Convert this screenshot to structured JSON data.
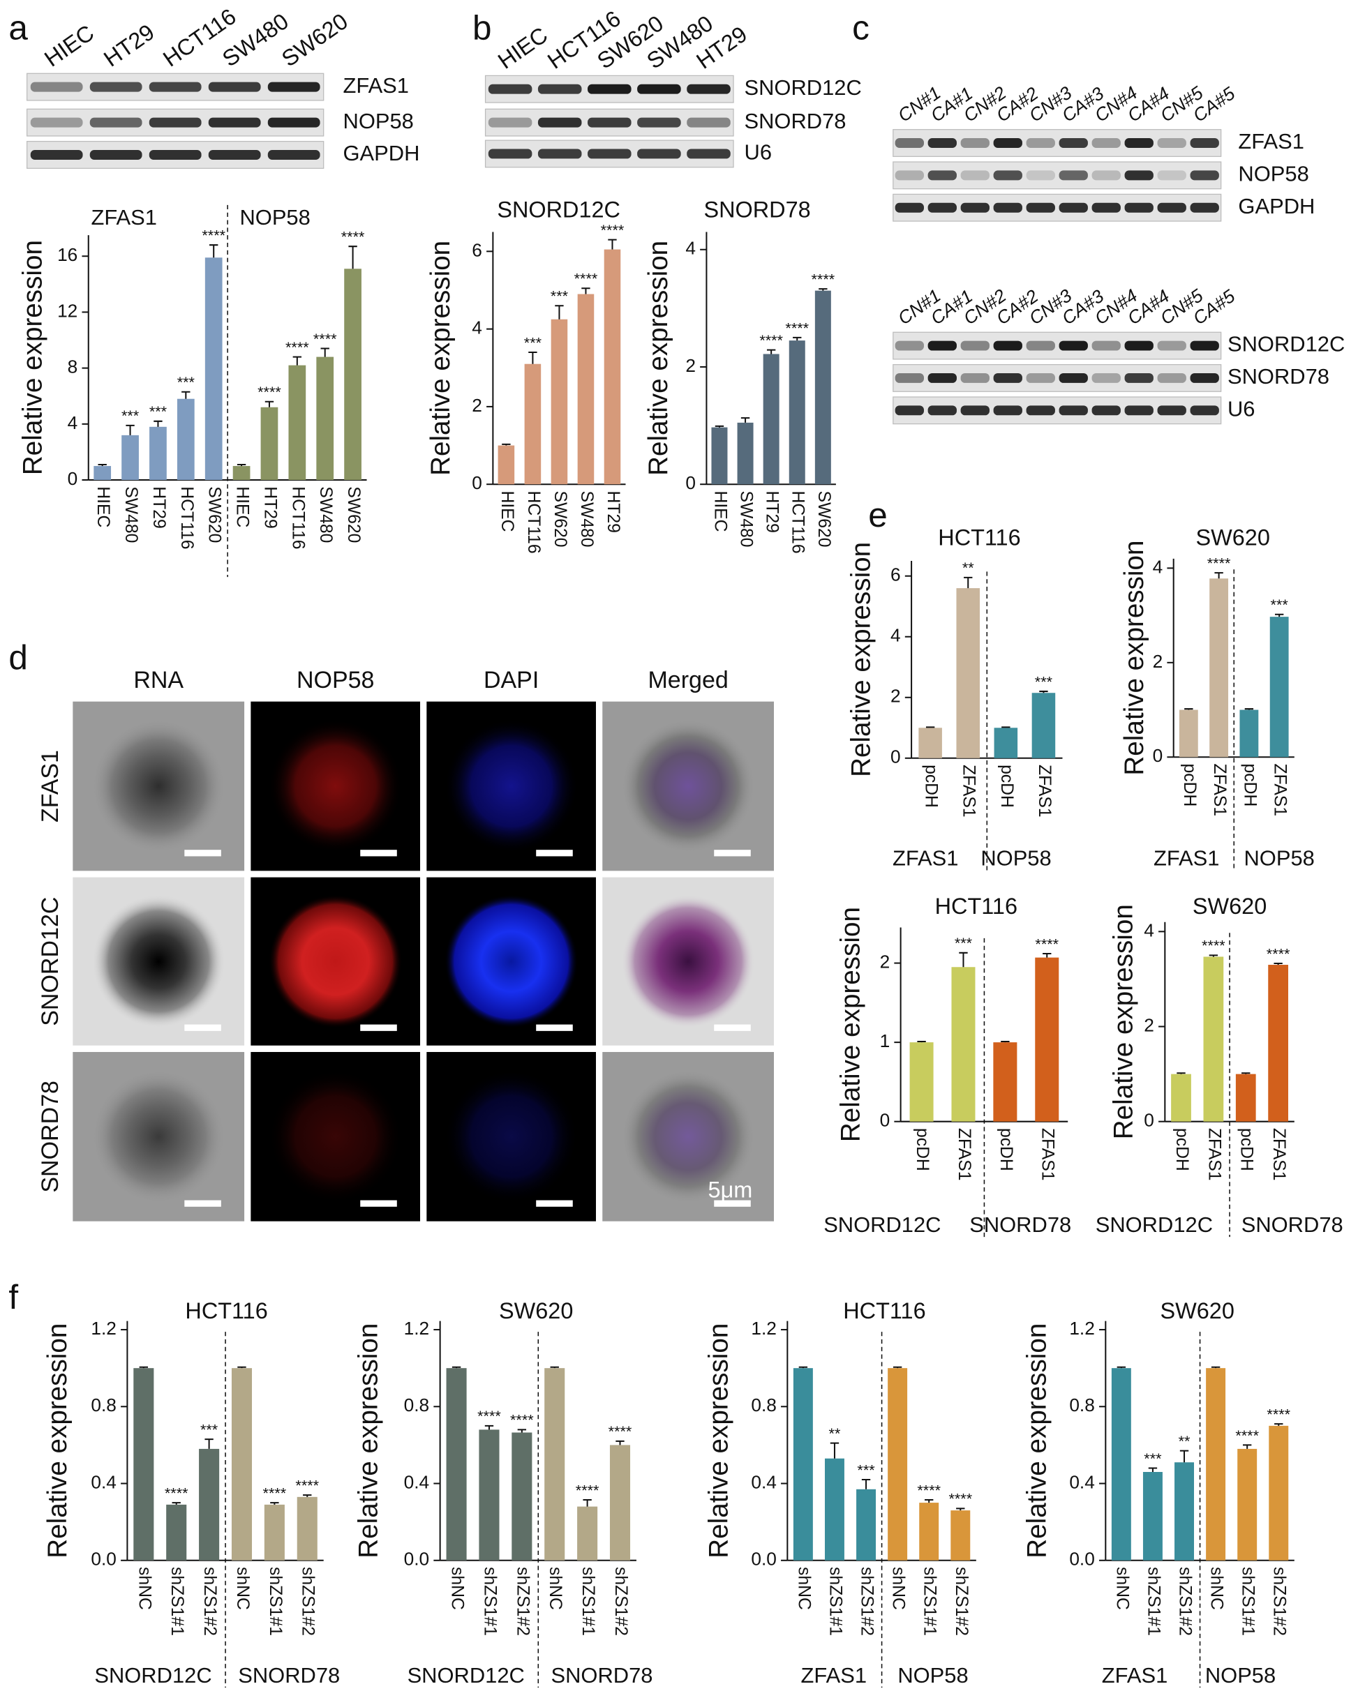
{
  "figure": {
    "panel_labels": [
      "a",
      "b",
      "c",
      "d",
      "e",
      "f"
    ],
    "blot_a": {
      "lanes": [
        "HIEC",
        "HT29",
        "HCT116",
        "SW480",
        "SW620"
      ],
      "rows": [
        "ZFAS1",
        "NOP58",
        "GAPDH"
      ]
    },
    "blot_b": {
      "lanes": [
        "HIEC",
        "HCT116",
        "SW620",
        "SW480",
        "HT29"
      ],
      "rows": [
        "SNORD12C",
        "SNORD78",
        "U6"
      ]
    },
    "blot_c1": {
      "lanes": [
        "CN#1",
        "CA#1",
        "CN#2",
        "CA#2",
        "CN#3",
        "CA#3",
        "CN#4",
        "CA#4",
        "CN#5",
        "CA#5"
      ],
      "rows": [
        "ZFAS1",
        "NOP58",
        "GAPDH"
      ]
    },
    "blot_c2": {
      "lanes": [
        "CN#1",
        "CA#1",
        "CN#2",
        "CA#2",
        "CN#3",
        "CA#3",
        "CN#4",
        "CA#4",
        "CN#5",
        "CA#5"
      ],
      "rows": [
        "SNORD12C",
        "SNORD78",
        "U6"
      ]
    },
    "microscopy": {
      "columns": [
        "RNA",
        "NOP58",
        "DAPI",
        "Merged"
      ],
      "rows": [
        "ZFAS1",
        "SNORD12C",
        "SNORD78"
      ],
      "scale_bar": "5μm"
    }
  },
  "chart_data": [
    {
      "type": "bar",
      "ylabel": "Relative expression",
      "ylim": [
        0,
        17.5
      ],
      "yticks": [
        0,
        4,
        8,
        12,
        16
      ],
      "groups": [
        {
          "name": "ZFAS1",
          "color": "#7f9cc0",
          "categories": [
            "HIEC",
            "SW480",
            "HT29",
            "HCT116",
            "SW620"
          ],
          "values": [
            1,
            3.2,
            3.8,
            5.8,
            15.9
          ],
          "errors": [
            0.1,
            0.7,
            0.4,
            0.5,
            0.9
          ],
          "significance": [
            null,
            "***",
            "***",
            "***",
            "****"
          ]
        },
        {
          "name": "NOP58",
          "color": "#8a9462",
          "categories": [
            "HIEC",
            "HT29",
            "HCT116",
            "SW480",
            "SW620"
          ],
          "values": [
            1,
            5.2,
            8.2,
            8.8,
            15.1
          ],
          "errors": [
            0.1,
            0.4,
            0.6,
            0.6,
            1.6
          ],
          "significance": [
            null,
            "****",
            "****",
            "****",
            "****"
          ]
        }
      ]
    },
    {
      "type": "bar",
      "title": "SNORD12C",
      "ylabel": "Relative expression",
      "ylim": [
        0,
        6.5
      ],
      "yticks": [
        0,
        2,
        4,
        6
      ],
      "groups": [
        {
          "color": "#d69a7a",
          "categories": [
            "HIEC",
            "HCT116",
            "SW620",
            "SW480",
            "HT29"
          ],
          "values": [
            1,
            3.1,
            4.25,
            4.9,
            6.05
          ],
          "errors": [
            0.03,
            0.3,
            0.35,
            0.15,
            0.25
          ],
          "significance": [
            null,
            "***",
            "***",
            "****",
            "****"
          ]
        }
      ]
    },
    {
      "type": "bar",
      "title": "SNORD78",
      "ylabel": "Relative expression",
      "ylim": [
        0,
        4.3
      ],
      "yticks": [
        0,
        2,
        4
      ],
      "groups": [
        {
          "color": "#566b7c",
          "categories": [
            "HIEC",
            "SW480",
            "HT29",
            "HCT116",
            "SW620"
          ],
          "values": [
            0.97,
            1.05,
            2.22,
            2.45,
            3.3
          ],
          "errors": [
            0.02,
            0.08,
            0.07,
            0.05,
            0.03
          ],
          "significance": [
            null,
            null,
            "****",
            "****",
            "****"
          ]
        }
      ]
    },
    {
      "type": "bar",
      "title": "HCT116",
      "ylabel": "Relative expression",
      "ylim": [
        0,
        6.5
      ],
      "yticks": [
        0,
        2,
        4,
        6
      ],
      "groups": [
        {
          "name": "ZFAS1",
          "color": "#c9b59c",
          "categories": [
            "pcDH",
            "ZFAS1"
          ],
          "values": [
            1,
            5.6
          ],
          "errors": [
            0.02,
            0.35
          ],
          "significance": [
            null,
            "**"
          ]
        },
        {
          "name": "NOP58",
          "color": "#3e8e9c",
          "categories": [
            "pcDH",
            "ZFAS1"
          ],
          "values": [
            1,
            2.15
          ],
          "errors": [
            0.02,
            0.05
          ],
          "significance": [
            null,
            "***"
          ]
        }
      ]
    },
    {
      "type": "bar",
      "title": "SW620",
      "ylabel": "Relative expression",
      "ylim": [
        0,
        4.2
      ],
      "yticks": [
        0,
        2,
        4
      ],
      "groups": [
        {
          "name": "ZFAS1",
          "color": "#c9b59c",
          "categories": [
            "pcDH",
            "ZFAS1"
          ],
          "values": [
            1,
            3.78
          ],
          "errors": [
            0.02,
            0.12
          ],
          "significance": [
            null,
            "****"
          ]
        },
        {
          "name": "NOP58",
          "color": "#3e8e9c",
          "categories": [
            "pcDH",
            "ZFAS1"
          ],
          "values": [
            1,
            2.97
          ],
          "errors": [
            0.02,
            0.05
          ],
          "significance": [
            null,
            "***"
          ]
        }
      ]
    },
    {
      "type": "bar",
      "title": "HCT116",
      "ylabel": "Relative expression",
      "ylim": [
        0,
        2.45
      ],
      "yticks": [
        0,
        1,
        2
      ],
      "groups": [
        {
          "name": "SNORD12C",
          "color": "#c8cc5e",
          "categories": [
            "pcDH",
            "ZFAS1"
          ],
          "values": [
            1,
            1.95
          ],
          "errors": [
            0.01,
            0.18
          ],
          "significance": [
            null,
            "***"
          ]
        },
        {
          "name": "SNORD78",
          "color": "#d2601c",
          "categories": [
            "pcDH",
            "ZFAS1"
          ],
          "values": [
            1,
            2.07
          ],
          "errors": [
            0.01,
            0.05
          ],
          "significance": [
            null,
            "****"
          ]
        }
      ]
    },
    {
      "type": "bar",
      "title": "SW620",
      "ylabel": "Relative expression",
      "ylim": [
        0,
        4.2
      ],
      "yticks": [
        0,
        2,
        4
      ],
      "groups": [
        {
          "name": "SNORD12C",
          "color": "#c8cc5e",
          "categories": [
            "pcDH",
            "ZFAS1"
          ],
          "values": [
            1,
            3.47
          ],
          "errors": [
            0.02,
            0.03
          ],
          "significance": [
            null,
            "****"
          ]
        },
        {
          "name": "SNORD78",
          "color": "#d2601c",
          "categories": [
            "pcDH",
            "ZFAS1"
          ],
          "values": [
            1,
            3.3
          ],
          "errors": [
            0.02,
            0.03
          ],
          "significance": [
            null,
            "****"
          ]
        }
      ]
    },
    {
      "type": "bar",
      "title": "HCT116",
      "ylabel": "Relative expression",
      "ylim": [
        0,
        1.245
      ],
      "yticks": [
        {
          "value": 0,
          "label": "0.0"
        },
        0.4,
        0.8,
        1.2
      ],
      "groups": [
        {
          "name": "SNORD12C",
          "color": "#5f6f67",
          "categories": [
            "shNC",
            "shZS1#1",
            "shZS1#2"
          ],
          "values": [
            1,
            0.29,
            0.58
          ],
          "errors": [
            0.005,
            0.01,
            0.05
          ],
          "significance": [
            null,
            "****",
            "***"
          ]
        },
        {
          "name": "SNORD78",
          "color": "#b3a888",
          "categories": [
            "shNC",
            "shZS1#1",
            "shZS1#2"
          ],
          "values": [
            1,
            0.29,
            0.33
          ],
          "errors": [
            0.005,
            0.01,
            0.01
          ],
          "significance": [
            null,
            "****",
            "****"
          ]
        }
      ]
    },
    {
      "type": "bar",
      "title": "SW620",
      "ylabel": "Relative expression",
      "ylim": [
        0,
        1.245
      ],
      "yticks": [
        {
          "value": 0,
          "label": "0.0"
        },
        0.4,
        0.8,
        1.2
      ],
      "groups": [
        {
          "name": "SNORD12C",
          "color": "#5f6f67",
          "categories": [
            "shNC",
            "shZS1#1",
            "shZS1#2"
          ],
          "values": [
            1,
            0.68,
            0.665
          ],
          "errors": [
            0.005,
            0.02,
            0.015
          ],
          "significance": [
            null,
            "****",
            "****"
          ]
        },
        {
          "name": "SNORD78",
          "color": "#b3a888",
          "categories": [
            "shNC",
            "shZS1#1",
            "shZS1#2"
          ],
          "values": [
            1,
            0.28,
            0.6
          ],
          "errors": [
            0.005,
            0.035,
            0.02
          ],
          "significance": [
            null,
            "****",
            "****"
          ]
        }
      ]
    },
    {
      "type": "bar",
      "title": "HCT116",
      "ylabel": "Relative expression",
      "ylim": [
        0,
        1.245
      ],
      "yticks": [
        {
          "value": 0,
          "label": "0.0"
        },
        0.4,
        0.8,
        1.2
      ],
      "groups": [
        {
          "name": "ZFAS1",
          "color": "#3a8d9b",
          "categories": [
            "shNC",
            "shZS1#1",
            "shZS1#2"
          ],
          "values": [
            1,
            0.53,
            0.37
          ],
          "errors": [
            0.005,
            0.08,
            0.05
          ],
          "significance": [
            null,
            "**",
            "***"
          ]
        },
        {
          "name": "NOP58",
          "color": "#d9963a",
          "categories": [
            "shNC",
            "shZS1#1",
            "shZS1#2"
          ],
          "values": [
            1,
            0.3,
            0.26
          ],
          "errors": [
            0.005,
            0.015,
            0.01
          ],
          "significance": [
            null,
            "****",
            "****"
          ]
        }
      ]
    },
    {
      "type": "bar",
      "title": "SW620",
      "ylabel": "Relative expression",
      "ylim": [
        0,
        1.245
      ],
      "yticks": [
        {
          "value": 0,
          "label": "0.0"
        },
        0.4,
        0.8,
        1.2
      ],
      "groups": [
        {
          "name": "ZFAS1",
          "color": "#3a8d9b",
          "categories": [
            "shNC",
            "shZS1#1",
            "shZS1#2"
          ],
          "values": [
            1,
            0.46,
            0.51
          ],
          "errors": [
            0.005,
            0.02,
            0.06
          ],
          "significance": [
            null,
            "***",
            "**"
          ]
        },
        {
          "name": "NOP58",
          "color": "#d9963a",
          "categories": [
            "shNC",
            "shZS1#1",
            "shZS1#2"
          ],
          "values": [
            1,
            0.58,
            0.7
          ],
          "errors": [
            0.005,
            0.02,
            0.01
          ],
          "significance": [
            null,
            "****",
            "****"
          ]
        }
      ]
    }
  ]
}
